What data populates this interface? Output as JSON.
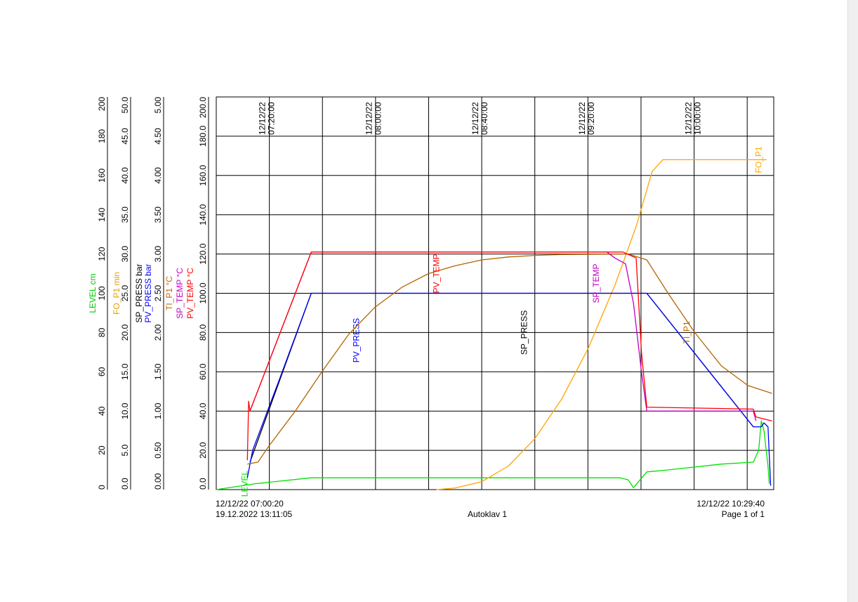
{
  "footer": {
    "start_time": "12/12/22 07:00:20",
    "printed": "19.12.2022  13:11:05",
    "title": "Autoklav 1",
    "end_time": "12/12/22 10:29:40",
    "page": "Page 1 of 1"
  },
  "chart_data": {
    "type": "line",
    "x_range": [
      "07:00:20",
      "10:29:40"
    ],
    "x_ticks": [
      {
        "time": "07:20:00",
        "date": "12/12/22"
      },
      {
        "time": "08:00:00",
        "date": "12/12/22"
      },
      {
        "time": "08:40:00",
        "date": "12/12/22"
      },
      {
        "time": "09:20:00",
        "date": "12/12/22"
      },
      {
        "time": "10:00:00",
        "date": "12/12/22"
      }
    ],
    "axes": [
      {
        "id": "level",
        "title": "LEVEL",
        "unit": "cm",
        "color": "#00c800",
        "ticks": [
          "0",
          "20",
          "40",
          "60",
          "80",
          "100",
          "120",
          "140",
          "160",
          "180",
          "200"
        ]
      },
      {
        "id": "fo",
        "title": "FO_P1",
        "unit": "min",
        "color": "#e6a000",
        "ticks": [
          "0.0",
          "5.0",
          "10.0",
          "15.0",
          "20.0",
          "25.0",
          "30.0",
          "35.0",
          "40.0",
          "45.0",
          "50.0"
        ]
      },
      {
        "id": "press",
        "titles": [
          {
            "text": "SP_PRESS",
            "color": "#000000"
          },
          {
            "text": "PV_PRESS",
            "color": "#0000ff"
          }
        ],
        "unit": "bar",
        "unit_color": "#000000",
        "ticks": [
          "0.00",
          "0.50",
          "1.00",
          "1.50",
          "2.00",
          "2.50",
          "3.00",
          "3.50",
          "4.00",
          "4.50",
          "5.00"
        ]
      },
      {
        "id": "temp",
        "titles": [
          {
            "text": "TI_P1",
            "color": "#c86400"
          },
          {
            "text": "SP_TEMP",
            "color": "#c000c0"
          },
          {
            "text": "PV_TEMP",
            "color": "#ff0000"
          }
        ],
        "unit": "°C",
        "ticks": [
          "0.0",
          "20.0",
          "40.0",
          "60.0",
          "80.0",
          "100.0",
          "120.0",
          "140.0",
          "160.0",
          "180.0",
          "200.0"
        ]
      }
    ],
    "series": [
      {
        "name": "LEVEL",
        "color": "#00e000",
        "axis": "level",
        "label_at": "07:12",
        "label_value": 3,
        "points": [
          [
            "07:00:20",
            0
          ],
          [
            "07:15:00",
            3
          ],
          [
            "07:36:00",
            6
          ],
          [
            "09:32:00",
            6
          ],
          [
            "09:35:00",
            5
          ],
          [
            "09:37:00",
            1
          ],
          [
            "09:42:00",
            9
          ],
          [
            "09:50:00",
            10
          ],
          [
            "10:10:00",
            13
          ],
          [
            "10:22:00",
            14
          ],
          [
            "10:24:00",
            20
          ],
          [
            "10:25:00",
            35
          ],
          [
            "10:26:00",
            30
          ],
          [
            "10:27:30",
            12
          ],
          [
            "10:28:00",
            3
          ]
        ]
      },
      {
        "name": "FO_P1",
        "color": "#ffa500",
        "axis": "fo",
        "label_at": "10:25",
        "label_value": 42,
        "points": [
          [
            "08:23:00",
            0
          ],
          [
            "08:30:00",
            0.2
          ],
          [
            "08:40:00",
            1
          ],
          [
            "08:50:00",
            3
          ],
          [
            "09:00:00",
            6.5
          ],
          [
            "09:10:00",
            11.5
          ],
          [
            "09:20:00",
            18
          ],
          [
            "09:30:00",
            26
          ],
          [
            "09:38:00",
            33.5
          ],
          [
            "09:44:00",
            40.5
          ],
          [
            "09:48:00",
            42
          ],
          [
            "10:27:00",
            42
          ]
        ]
      },
      {
        "name": "SP_PRESS",
        "color": "#000000",
        "axis": "press",
        "label_at": "08:57",
        "label_value": 2.0,
        "points": [
          [
            "07:13:00",
            0.35
          ],
          [
            "07:36:00",
            2.5
          ],
          [
            "09:42:00",
            2.5
          ],
          [
            "10:22:00",
            0.8
          ]
        ]
      },
      {
        "name": "PV_PRESS",
        "color": "#0000ff",
        "axis": "press",
        "label_at": "07:54",
        "label_value": 1.9,
        "points": [
          [
            "07:12:00",
            0.15
          ],
          [
            "07:14:00",
            0.5
          ],
          [
            "07:24:00",
            1.4
          ],
          [
            "07:36:00",
            2.5
          ],
          [
            "09:42:00",
            2.5
          ],
          [
            "10:22:00",
            0.8
          ],
          [
            "10:25:00",
            0.8
          ],
          [
            "10:26:00",
            0.85
          ],
          [
            "10:27:30",
            0.8
          ],
          [
            "10:28:30",
            0.05
          ]
        ]
      },
      {
        "name": "TI_P1",
        "color": "#b46400",
        "axis": "temp",
        "label_at": "09:58",
        "label_value": 80,
        "points": [
          [
            "07:12:00",
            13
          ],
          [
            "07:16:00",
            14
          ],
          [
            "07:20:00",
            22
          ],
          [
            "07:30:00",
            40
          ],
          [
            "07:40:00",
            60
          ],
          [
            "07:50:00",
            79
          ],
          [
            "08:00:00",
            93
          ],
          [
            "08:10:00",
            103
          ],
          [
            "08:20:00",
            110
          ],
          [
            "08:30:00",
            114
          ],
          [
            "08:40:00",
            117
          ],
          [
            "08:50:00",
            118.5
          ],
          [
            "09:00:00",
            119.3
          ],
          [
            "09:10:00",
            119.7
          ],
          [
            "09:35:00",
            120
          ],
          [
            "09:42:00",
            117
          ],
          [
            "09:50:00",
            100
          ],
          [
            "10:00:00",
            80
          ],
          [
            "10:10:00",
            63
          ],
          [
            "10:20:00",
            53
          ],
          [
            "10:29:00",
            49
          ]
        ]
      },
      {
        "name": "SP_TEMP",
        "color": "#c000c0",
        "axis": "temp",
        "label_at": "09:24",
        "label_value": 105,
        "points": [
          [
            "07:13:00",
            40
          ],
          [
            "07:36:00",
            121
          ],
          [
            "09:27:00",
            121
          ],
          [
            "09:30:00",
            118
          ],
          [
            "09:34:00",
            115
          ],
          [
            "09:37:00",
            95
          ],
          [
            "09:40:00",
            60
          ],
          [
            "09:42:00",
            40
          ],
          [
            "10:22:00",
            40
          ],
          [
            "10:23:00",
            35
          ]
        ]
      },
      {
        "name": "PV_TEMP",
        "color": "#ff0000",
        "axis": "temp",
        "label_at": "08:24",
        "label_value": 110,
        "points": [
          [
            "07:12:00",
            15
          ],
          [
            "07:12:30",
            45
          ],
          [
            "07:13:00",
            40
          ],
          [
            "07:36:00",
            121
          ],
          [
            "09:33:00",
            121
          ],
          [
            "09:38:00",
            118
          ],
          [
            "09:40:00",
            70
          ],
          [
            "09:42:00",
            42
          ],
          [
            "10:22:00",
            41
          ],
          [
            "10:23:00",
            37
          ],
          [
            "10:29:00",
            35
          ]
        ]
      }
    ]
  }
}
